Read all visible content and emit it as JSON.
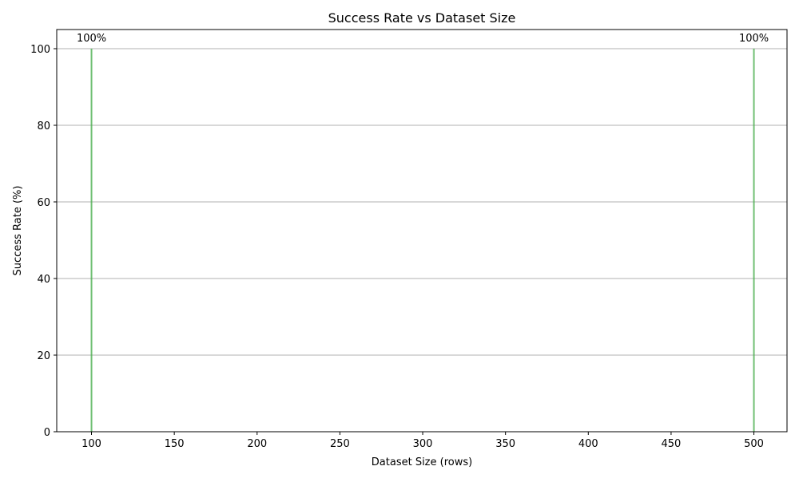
{
  "chart_data": {
    "type": "bar",
    "title": "Success Rate vs Dataset Size",
    "xlabel": "Dataset Size (rows)",
    "ylabel": "Success Rate (%)",
    "x": [
      100,
      500
    ],
    "values": [
      100,
      100
    ],
    "data_labels": [
      "100%",
      "100%"
    ],
    "xlim": [
      79,
      520
    ],
    "ylim": [
      0,
      105
    ],
    "xticks": [
      100,
      150,
      200,
      250,
      300,
      350,
      400,
      450,
      500
    ],
    "yticks": [
      0,
      20,
      40,
      60,
      80,
      100
    ],
    "grid": "y-axis major",
    "bar_color": "#4caf50"
  }
}
